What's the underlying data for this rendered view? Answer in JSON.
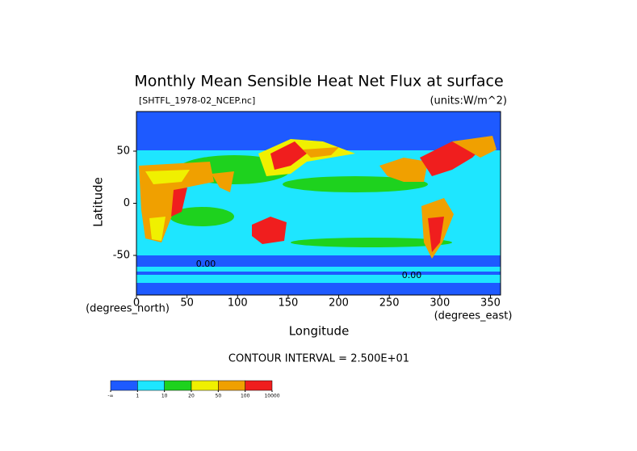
{
  "chart_data": {
    "type": "contour-map",
    "title": "Monthly Mean Sensible Heat Net Flux at surface",
    "file_label": "[SHTFL_1978-02_NCEP.nc]",
    "units_label": "(units:W/m^2)",
    "x_label": "Longitude",
    "y_label": "Latitude",
    "x_units": "(degrees_east)",
    "y_units": "(degrees_north)",
    "contour_interval": "CONTOUR INTERVAL = 2.500E+01",
    "annotations": [
      "0.00",
      "0.00"
    ],
    "xlim": [
      0,
      360
    ],
    "ylim": [
      -88,
      88
    ],
    "xticks": [
      0,
      50,
      100,
      150,
      200,
      250,
      300,
      350
    ],
    "yticks": [
      -50,
      0,
      50
    ],
    "colorbar": {
      "levels": [
        "-∞",
        1,
        10,
        20,
        50,
        100,
        10000
      ],
      "colors": [
        "#1e5aff",
        "#1ee6ff",
        "#1ed21e",
        "#f0f000",
        "#f0a000",
        "#f01e1e"
      ]
    }
  }
}
